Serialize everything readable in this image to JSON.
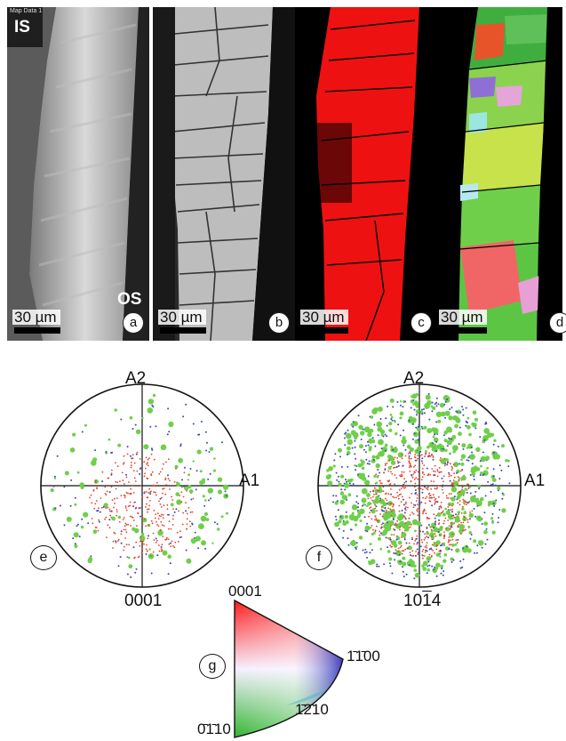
{
  "panels": {
    "a": {
      "letter": "a",
      "scale": "30 µm",
      "top_label": "IS",
      "bottom_label": "OS",
      "map_title": "Map Data 1"
    },
    "b": {
      "letter": "b",
      "scale": "30 µm"
    },
    "c": {
      "letter": "c",
      "scale": "30 µm"
    },
    "d": {
      "letter": "d",
      "scale": "30 µm"
    }
  },
  "pole_figures": {
    "e": {
      "letter": "e",
      "axis_top": "A2",
      "axis_right": "A1",
      "pole": "0001"
    },
    "f": {
      "letter": "f",
      "axis_top": "A2",
      "axis_right": "A1",
      "pole": "10",
      "pole_bar": "1",
      "pole_end": "4"
    }
  },
  "ipf_key": {
    "letter": "g",
    "top": "0001",
    "right": "1̄1̄00",
    "middle": "1̄2̄10",
    "bottom": "0̄1̄10"
  },
  "colors": {
    "phase_red": "#ee1111",
    "green": "#6fcf4a",
    "blue": "#3b4bb0",
    "red_dot": "#e8402a"
  }
}
